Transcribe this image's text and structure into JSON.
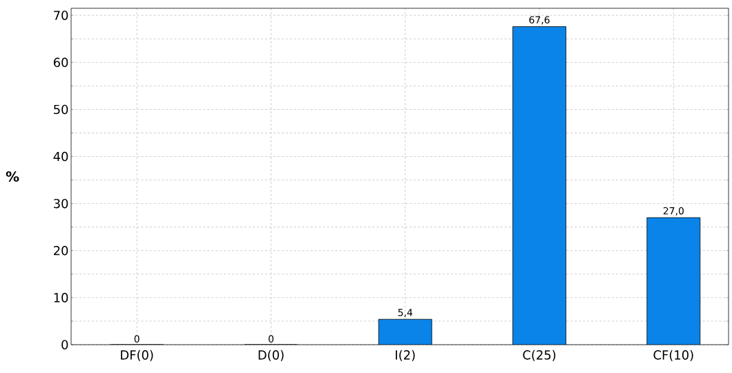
{
  "chart_data": {
    "type": "bar",
    "ylabel": "%",
    "categories": [
      "DF(0)",
      "D(0)",
      "I(2)",
      "C(25)",
      "CF(10)"
    ],
    "values": [
      0,
      0,
      5.4,
      67.6,
      27.0
    ],
    "value_labels": [
      "0",
      "0",
      "5,4",
      "67,6",
      "27,0"
    ],
    "color": "#0a84e8",
    "ylim": [
      0,
      71.5
    ],
    "yticks": [
      0,
      {
        "value": 5,
        "label": null
      },
      10,
      {
        "value": 15,
        "label": null
      },
      20,
      {
        "value": 25,
        "label": null
      },
      30,
      {
        "value": 35,
        "label": null
      },
      40,
      {
        "value": 45,
        "label": null
      },
      50,
      {
        "value": 55,
        "label": null
      },
      60,
      {
        "value": 65,
        "label": null
      },
      70
    ],
    "grid": true
  }
}
